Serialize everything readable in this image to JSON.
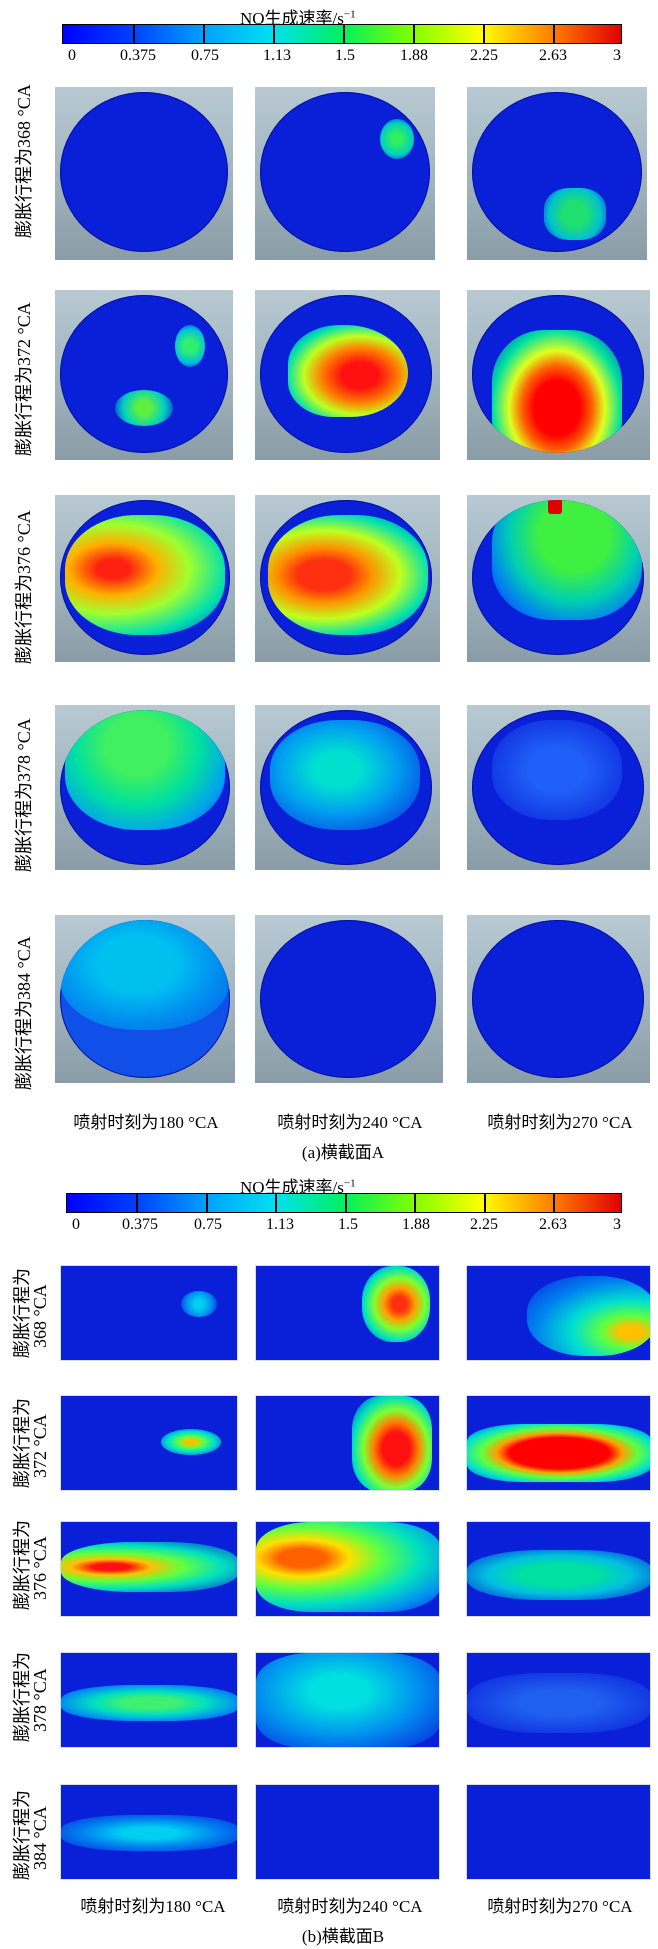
{
  "colorbar": {
    "title": "NO生成速率/s",
    "title_sup": "−1",
    "ticks": [
      "0",
      "0.375",
      "0.75",
      "1.13",
      "1.5",
      "1.88",
      "2.25",
      "2.63",
      "3"
    ]
  },
  "section_a": {
    "caption": "(a)横截面A",
    "row_labels": [
      "膨胀行程为368 °CA",
      "膨胀行程为372 °CA",
      "膨胀行程为376 °CA",
      "膨胀行程为378 °CA",
      "膨胀行程为384 °CA"
    ],
    "col_labels": [
      "喷射时刻为180 °CA",
      "喷射时刻为240 °CA",
      "喷射时刻为270 °CA"
    ]
  },
  "section_b": {
    "caption": "(b)横截面B",
    "row_labels_line1": [
      "膨胀行程为",
      "膨胀行程为",
      "膨胀行程为",
      "膨胀行程为",
      "膨胀行程为"
    ],
    "row_labels_line2": [
      "368 °CA",
      "372 °CA",
      "376 °CA",
      "378 °CA",
      "384 °CA"
    ],
    "col_labels": [
      "喷射时刻为180 °CA",
      "喷射时刻为240 °CA",
      "喷射时刻为270 °CA"
    ]
  },
  "colors": {
    "background_blue": "#0a1fd8",
    "tile_gray": "#a2b5bf"
  }
}
